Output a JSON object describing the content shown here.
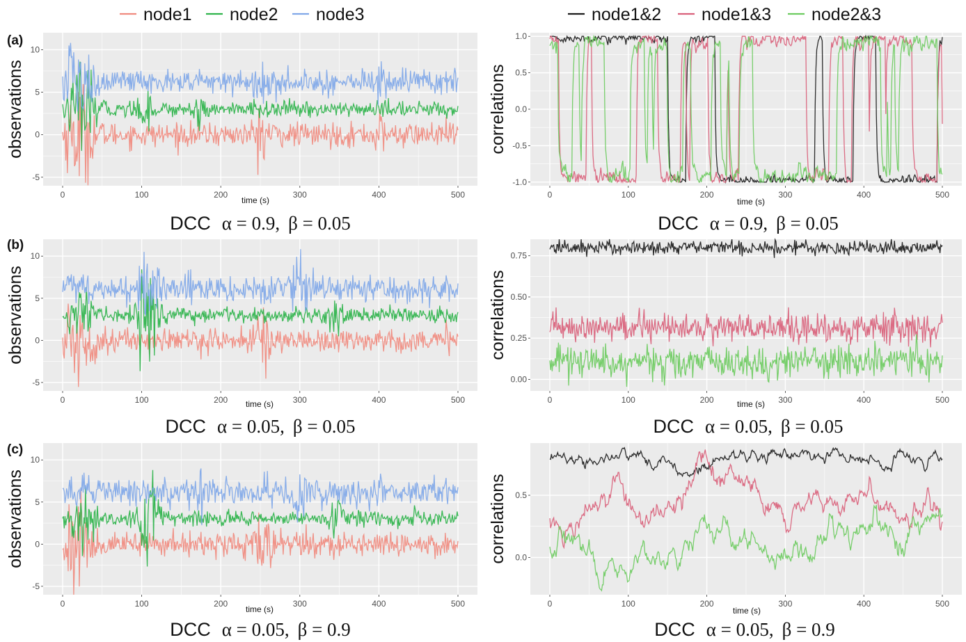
{
  "legend_left": [
    {
      "label": "node1",
      "color": "#F08A7E"
    },
    {
      "label": "node2",
      "color": "#2DB34A"
    },
    {
      "label": "node3",
      "color": "#7FA7E8"
    }
  ],
  "legend_right": [
    {
      "label": "node1&2",
      "color": "#1a1a1a"
    },
    {
      "label": "node1&3",
      "color": "#D9607A"
    },
    {
      "label": "node2&3",
      "color": "#6CCB5F"
    }
  ],
  "rows": [
    {
      "tag": "(a)",
      "caption_left": {
        "method": "DCC",
        "alpha": "α = 0.9",
        "beta": "β = 0.05"
      },
      "caption_right": {
        "method": "DCC",
        "alpha": "α = 0.9",
        "beta": "β = 0.05"
      }
    },
    {
      "tag": "(b)",
      "caption_left": {
        "method": "DCC",
        "alpha": "α = 0.05",
        "beta": "β = 0.05"
      },
      "caption_right": {
        "method": "DCC",
        "alpha": "α = 0.05",
        "beta": "β = 0.05"
      }
    },
    {
      "tag": "(c)",
      "caption_left": {
        "method": "DCC",
        "alpha": "α = 0.05",
        "beta": "β = 0.9"
      },
      "caption_right": {
        "method": "DCC",
        "alpha": "α = 0.05",
        "beta": "β = 0.9"
      }
    }
  ],
  "chart_data": [
    {
      "id": "a-left",
      "type": "line",
      "xlabel": "time (s)",
      "ylabel": "observations",
      "xlim": [
        0,
        500
      ],
      "ylim": [
        -6,
        12
      ],
      "xticks": [
        "0",
        "100",
        "200",
        "300",
        "400",
        "500"
      ],
      "yticks": [
        {
          "v": -5,
          "t": "-5"
        },
        {
          "v": 0,
          "t": "0"
        },
        {
          "v": 5,
          "t": "5"
        },
        {
          "v": 10,
          "t": "10"
        }
      ],
      "grid": true,
      "series": [
        {
          "name": "node1",
          "color": "#F08A7E",
          "level": 0.0,
          "noise": 0.7,
          "bursts": [
            {
              "x": 20,
              "w": 18,
              "amp": 2.6
            },
            {
              "x": 255,
              "w": 10,
              "amp": 1.6
            },
            {
              "x": 400,
              "w": 6,
              "amp": 1.0
            }
          ]
        },
        {
          "name": "node2",
          "color": "#2DB34A",
          "level": 3.0,
          "noise": 0.45,
          "bursts": [
            {
              "x": 25,
              "w": 18,
              "amp": 2.0
            },
            {
              "x": 105,
              "w": 10,
              "amp": 0.8
            },
            {
              "x": 175,
              "w": 10,
              "amp": 0.8
            }
          ]
        },
        {
          "name": "node3",
          "color": "#7FA7E8",
          "level": 6.2,
          "noise": 0.75,
          "bursts": [
            {
              "x": 15,
              "w": 18,
              "amp": 1.9
            },
            {
              "x": 255,
              "w": 8,
              "amp": 1.0
            },
            {
              "x": 405,
              "w": 6,
              "amp": 1.4
            }
          ]
        }
      ]
    },
    {
      "id": "a-right",
      "type": "line",
      "xlabel": "time (s)",
      "ylabel": "correlations",
      "xlim": [
        0,
        500
      ],
      "ylim": [
        -1.05,
        1.05
      ],
      "xticks": [
        "0",
        "100",
        "200",
        "300",
        "400",
        "500"
      ],
      "yticks": [
        {
          "v": -1.0,
          "t": "-1.0"
        },
        {
          "v": -0.5,
          "t": "-0.5"
        },
        {
          "v": 0.0,
          "t": "0.0"
        },
        {
          "v": 0.5,
          "t": "0.5"
        },
        {
          "v": 1.0,
          "t": "1.0"
        }
      ],
      "grid": true,
      "series": [
        {
          "name": "node1&2",
          "color": "#1a1a1a",
          "mode": "switch",
          "level": 0.98,
          "flipRate": 0.018,
          "noise": 0.03
        },
        {
          "name": "node1&3",
          "color": "#D9607A",
          "mode": "switch",
          "level": 0.95,
          "flipRate": 0.055,
          "noise": 0.05
        },
        {
          "name": "node2&3",
          "color": "#6CCB5F",
          "mode": "switch",
          "level": 0.9,
          "flipRate": 0.075,
          "noise": 0.06
        }
      ]
    },
    {
      "id": "b-left",
      "type": "line",
      "xlabel": "time (s)",
      "ylabel": "observations",
      "xlim": [
        0,
        500
      ],
      "ylim": [
        -6,
        12
      ],
      "xticks": [
        "0",
        "100",
        "200",
        "300",
        "400",
        "500"
      ],
      "yticks": [
        {
          "v": -5,
          "t": "-5"
        },
        {
          "v": 0,
          "t": "0"
        },
        {
          "v": 5,
          "t": "5"
        },
        {
          "v": 10,
          "t": "10"
        }
      ],
      "grid": true,
      "series": [
        {
          "name": "node1",
          "color": "#F08A7E",
          "level": 0.0,
          "noise": 0.7,
          "bursts": [
            {
              "x": 20,
              "w": 18,
              "amp": 2.6
            },
            {
              "x": 255,
              "w": 10,
              "amp": 1.6
            }
          ]
        },
        {
          "name": "node2",
          "color": "#2DB34A",
          "level": 3.0,
          "noise": 0.45,
          "bursts": [
            {
              "x": 25,
              "w": 14,
              "amp": 1.4
            },
            {
              "x": 108,
              "w": 12,
              "amp": 3.0
            },
            {
              "x": 345,
              "w": 8,
              "amp": 1.0
            }
          ]
        },
        {
          "name": "node3",
          "color": "#7FA7E8",
          "level": 6.2,
          "noise": 0.8,
          "bursts": [
            {
              "x": 108,
              "w": 12,
              "amp": 1.8
            },
            {
              "x": 300,
              "w": 8,
              "amp": 1.4
            }
          ]
        }
      ]
    },
    {
      "id": "b-right",
      "type": "line",
      "xlabel": "time (s)",
      "ylabel": "correlations",
      "xlim": [
        0,
        500
      ],
      "ylim": [
        -0.07,
        0.85
      ],
      "xticks": [
        "0",
        "100",
        "200",
        "300",
        "400",
        "500"
      ],
      "yticks": [
        {
          "v": 0.0,
          "t": "0.00"
        },
        {
          "v": 0.25,
          "t": "0.25"
        },
        {
          "v": 0.5,
          "t": "0.50"
        },
        {
          "v": 0.75,
          "t": "0.75"
        }
      ],
      "grid": true,
      "series": [
        {
          "name": "node1&2",
          "color": "#1a1a1a",
          "mode": "noise",
          "level": 0.8,
          "noise": 0.022
        },
        {
          "name": "node1&3",
          "color": "#D9607A",
          "mode": "noise",
          "level": 0.31,
          "noise": 0.045
        },
        {
          "name": "node2&3",
          "color": "#6CCB5F",
          "mode": "noise",
          "level": 0.11,
          "noise": 0.05
        }
      ]
    },
    {
      "id": "c-left",
      "type": "line",
      "xlabel": "time (s)",
      "ylabel": "observations",
      "xlim": [
        0,
        500
      ],
      "ylim": [
        -6,
        12
      ],
      "xticks": [
        "0",
        "100",
        "200",
        "300",
        "400",
        "500"
      ],
      "yticks": [
        {
          "v": -5,
          "t": "-5"
        },
        {
          "v": 0,
          "t": "0"
        },
        {
          "v": 5,
          "t": "5"
        },
        {
          "v": 10,
          "t": "10"
        }
      ],
      "grid": true,
      "series": [
        {
          "name": "node1",
          "color": "#F08A7E",
          "level": 0.0,
          "noise": 0.7,
          "bursts": [
            {
              "x": 20,
              "w": 18,
              "amp": 2.6
            },
            {
              "x": 255,
              "w": 10,
              "amp": 1.6
            }
          ]
        },
        {
          "name": "node2",
          "color": "#2DB34A",
          "level": 3.0,
          "noise": 0.45,
          "bursts": [
            {
              "x": 25,
              "w": 14,
              "amp": 1.4
            },
            {
              "x": 108,
              "w": 12,
              "amp": 3.0
            },
            {
              "x": 345,
              "w": 8,
              "amp": 1.0
            }
          ]
        },
        {
          "name": "node3",
          "color": "#7FA7E8",
          "level": 6.2,
          "noise": 0.8,
          "bursts": [
            {
              "x": 170,
              "w": 12,
              "amp": 1.2
            },
            {
              "x": 300,
              "w": 8,
              "amp": 1.4
            }
          ]
        }
      ]
    },
    {
      "id": "c-right",
      "type": "line",
      "xlabel": "time (s)",
      "ylabel": "correlations",
      "xlim": [
        0,
        500
      ],
      "ylim": [
        -0.3,
        0.92
      ],
      "xticks": [
        "0",
        "100",
        "200",
        "300",
        "400",
        "500"
      ],
      "yticks": [
        {
          "v": 0.0,
          "t": "0.0"
        },
        {
          "v": 0.5,
          "t": "0.5"
        }
      ],
      "grid": true,
      "series": [
        {
          "name": "node1&2",
          "color": "#1a1a1a",
          "mode": "walk",
          "level": 0.79,
          "noise": 0.018,
          "revert": 0.06
        },
        {
          "name": "node1&3",
          "color": "#D9607A",
          "mode": "walk",
          "level": 0.3,
          "noise": 0.035,
          "revert": 0.02
        },
        {
          "name": "node2&3",
          "color": "#6CCB5F",
          "mode": "walk",
          "level": 0.08,
          "noise": 0.035,
          "revert": 0.02
        }
      ]
    }
  ]
}
